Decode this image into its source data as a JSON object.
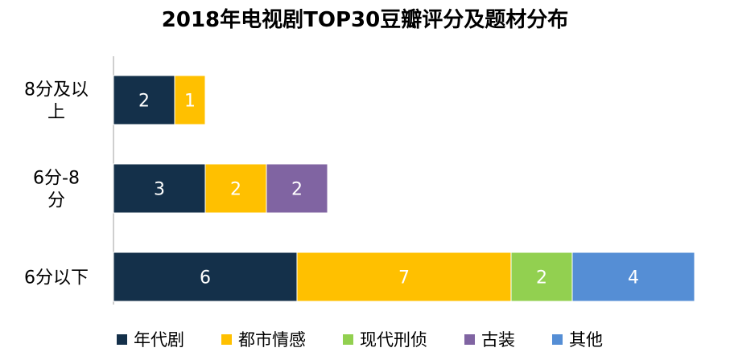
{
  "chart_data": {
    "type": "bar",
    "orientation": "horizontal",
    "stacked": true,
    "title": "2018年电视剧TOP30豆瓣评分及题材分布",
    "categories": [
      "8分及以上",
      "6分-8分",
      "6分以下"
    ],
    "series": [
      {
        "name": "年代剧",
        "color": "#14304a",
        "values": [
          2,
          3,
          6
        ]
      },
      {
        "name": "都市情感",
        "color": "#ffc000",
        "values": [
          1,
          2,
          7
        ]
      },
      {
        "name": "现代刑侦",
        "color": "#92d050",
        "values": [
          0,
          0,
          2
        ]
      },
      {
        "name": "古装",
        "color": "#8064a2",
        "values": [
          0,
          2,
          0
        ]
      },
      {
        "name": "其他",
        "color": "#558ed5",
        "values": [
          0,
          0,
          4
        ]
      }
    ],
    "xlim": [
      0,
      19
    ],
    "grid": false,
    "legend": "bottom",
    "data_labels": true
  }
}
